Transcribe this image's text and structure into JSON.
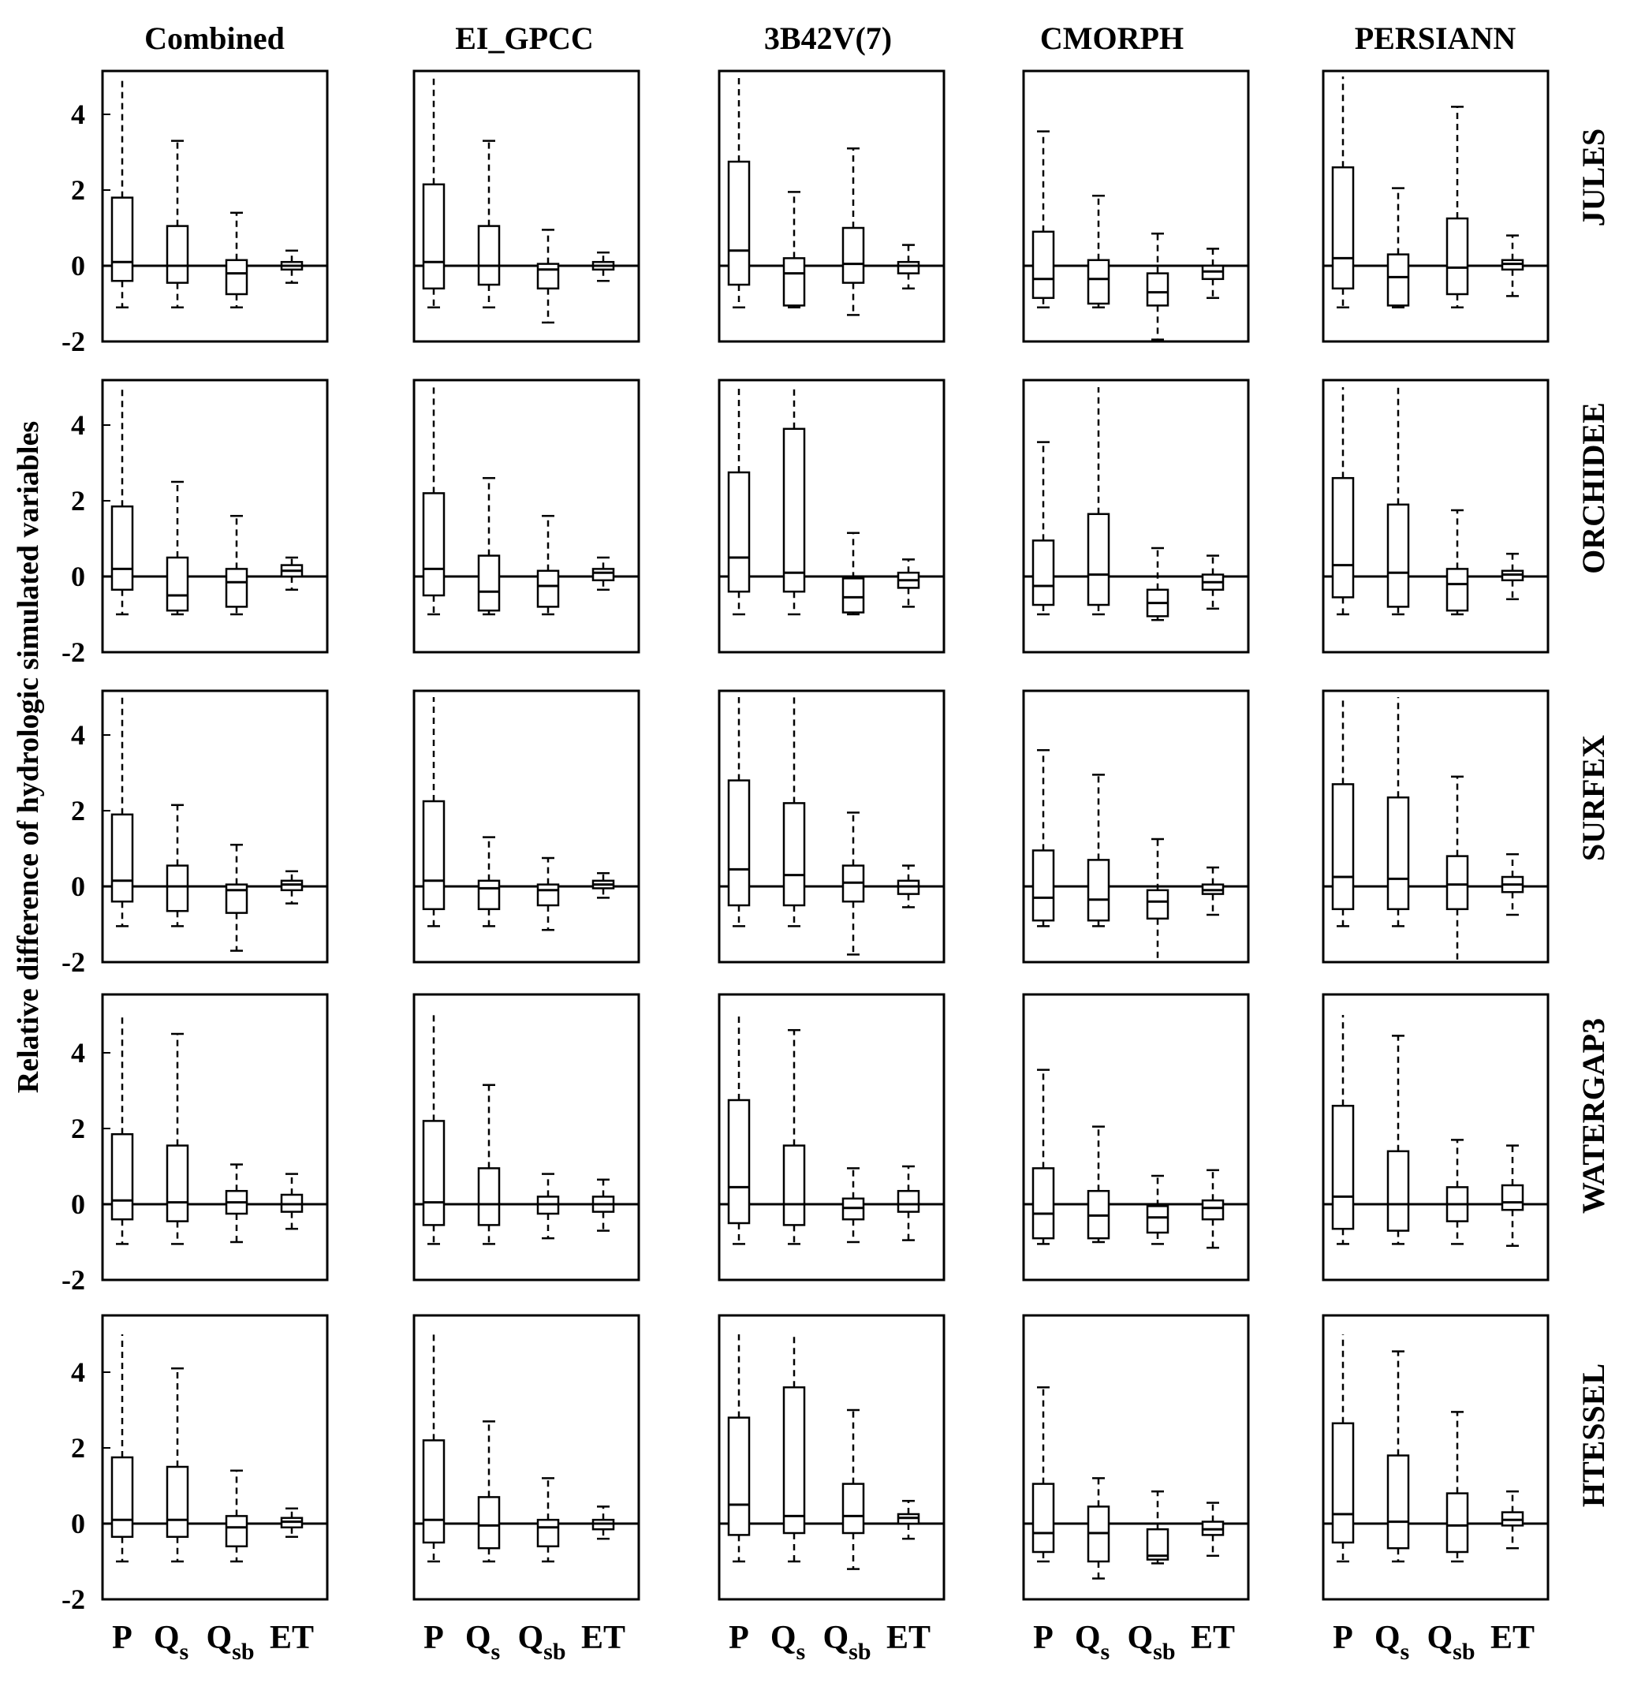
{
  "chart_data": {
    "type": "boxplot",
    "ylabel": "Relative difference of hydrologic simulated variables",
    "columns": [
      "Combined",
      "EI_GPCC",
      "3B42V(7)",
      "CMORPH",
      "PERSIANN"
    ],
    "rows": [
      "JULES",
      "ORCHIDEE",
      "SURFEX",
      "WATERGAP3",
      "HTESSEL"
    ],
    "variables": [
      {
        "main": "P",
        "sub": ""
      },
      {
        "main": "Q",
        "sub": "s"
      },
      {
        "main": "Q",
        "sub": "sb"
      },
      {
        "main": "ET",
        "sub": ""
      }
    ],
    "yticks": [
      "4",
      "2",
      "0",
      "-2"
    ],
    "ylim": [
      -2,
      5
    ],
    "zero_line": 0,
    "box_fields": [
      "whisker_low",
      "q1",
      "median",
      "q3",
      "whisker_high"
    ],
    "boxes": [
      [
        [
          [
            -1.1,
            -0.4,
            0.1,
            1.8,
            5
          ],
          [
            -1.1,
            -0.45,
            0,
            1.05,
            3.3
          ],
          [
            -1.1,
            -0.75,
            -0.2,
            0.15,
            1.4
          ],
          [
            -0.45,
            -0.1,
            0,
            0.1,
            0.4
          ]
        ],
        [
          [
            -1.1,
            -0.6,
            0.1,
            2.15,
            5
          ],
          [
            -1.1,
            -0.5,
            0,
            1.05,
            3.3
          ],
          [
            -1.5,
            -0.6,
            -0.1,
            0.05,
            0.95
          ],
          [
            -0.4,
            -0.1,
            0,
            0.1,
            0.35
          ]
        ],
        [
          [
            -1.1,
            -0.5,
            0.4,
            2.75,
            5
          ],
          [
            -1.1,
            -1.05,
            -0.2,
            0.2,
            1.95
          ],
          [
            -1.3,
            -0.45,
            0.05,
            1.0,
            3.1
          ],
          [
            -0.6,
            -0.2,
            0,
            0.1,
            0.55
          ]
        ],
        [
          [
            -1.1,
            -0.85,
            -0.35,
            0.9,
            3.55
          ],
          [
            -1.1,
            -1.0,
            -0.35,
            0.15,
            1.85
          ],
          [
            -1.95,
            -1.05,
            -0.7,
            -0.2,
            0.85
          ],
          [
            -0.85,
            -0.35,
            -0.15,
            0,
            0.45
          ]
        ],
        [
          [
            -1.1,
            -0.6,
            0.2,
            2.6,
            5
          ],
          [
            -1.1,
            -1.05,
            -0.3,
            0.3,
            2.05
          ],
          [
            -1.1,
            -0.75,
            -0.05,
            1.25,
            4.2
          ],
          [
            -0.8,
            -0.1,
            0.05,
            0.15,
            0.8
          ]
        ]
      ],
      [
        [
          [
            -1.0,
            -0.35,
            0.2,
            1.85,
            5
          ],
          [
            -1.0,
            -0.9,
            -0.5,
            0.5,
            2.5
          ],
          [
            -1.0,
            -0.8,
            -0.15,
            0.2,
            1.6
          ],
          [
            -0.35,
            0,
            0.15,
            0.3,
            0.5
          ]
        ],
        [
          [
            -1.0,
            -0.5,
            0.2,
            2.2,
            5
          ],
          [
            -1.0,
            -0.9,
            -0.4,
            0.55,
            2.6
          ],
          [
            -1.0,
            -0.8,
            -0.25,
            0.15,
            1.6
          ],
          [
            -0.35,
            -0.1,
            0.1,
            0.2,
            0.5
          ]
        ],
        [
          [
            -1.0,
            -0.4,
            0.5,
            2.75,
            5
          ],
          [
            -1.0,
            -0.4,
            0.1,
            3.9,
            5
          ],
          [
            -1.0,
            -0.95,
            -0.55,
            -0.05,
            1.15
          ],
          [
            -0.8,
            -0.3,
            -0.1,
            0.1,
            0.45
          ]
        ],
        [
          [
            -1.0,
            -0.75,
            -0.25,
            0.95,
            3.55
          ],
          [
            -1.0,
            -0.75,
            0.05,
            1.65,
            5
          ],
          [
            -1.15,
            -1.05,
            -0.7,
            -0.35,
            0.75
          ],
          [
            -0.85,
            -0.35,
            -0.15,
            0.05,
            0.55
          ]
        ],
        [
          [
            -1.0,
            -0.55,
            0.3,
            2.6,
            5
          ],
          [
            -1.0,
            -0.8,
            0.1,
            1.9,
            5
          ],
          [
            -1.0,
            -0.9,
            -0.2,
            0.2,
            1.75
          ],
          [
            -0.6,
            -0.1,
            0.05,
            0.15,
            0.6
          ]
        ]
      ],
      [
        [
          [
            -1.05,
            -0.4,
            0.15,
            1.9,
            5
          ],
          [
            -1.05,
            -0.65,
            0,
            0.55,
            2.15
          ],
          [
            -1.7,
            -0.7,
            -0.1,
            0.05,
            1.1
          ],
          [
            -0.45,
            -0.1,
            0.05,
            0.15,
            0.4
          ]
        ],
        [
          [
            -1.05,
            -0.6,
            0.15,
            2.25,
            5
          ],
          [
            -1.05,
            -0.6,
            -0.05,
            0.15,
            1.3
          ],
          [
            -1.15,
            -0.5,
            -0.1,
            0.05,
            0.75
          ],
          [
            -0.3,
            -0.05,
            0.05,
            0.15,
            0.35
          ]
        ],
        [
          [
            -1.05,
            -0.5,
            0.45,
            2.8,
            5
          ],
          [
            -1.05,
            -0.5,
            0.3,
            2.2,
            5
          ],
          [
            -1.8,
            -0.4,
            0.1,
            0.55,
            1.95
          ],
          [
            -0.55,
            -0.2,
            0,
            0.15,
            0.55
          ]
        ],
        [
          [
            -1.05,
            -0.9,
            -0.3,
            0.95,
            3.6
          ],
          [
            -1.05,
            -0.9,
            -0.35,
            0.7,
            2.95
          ],
          [
            -2.1,
            -0.85,
            -0.4,
            -0.1,
            1.25
          ],
          [
            -0.75,
            -0.2,
            -0.1,
            0.05,
            0.5
          ]
        ],
        [
          [
            -1.05,
            -0.6,
            0.25,
            2.7,
            5
          ],
          [
            -1.05,
            -0.6,
            0.2,
            2.35,
            5
          ],
          [
            -2.1,
            -0.6,
            0.05,
            0.8,
            2.9
          ],
          [
            -0.75,
            -0.15,
            0.05,
            0.25,
            0.85
          ]
        ]
      ],
      [
        [
          [
            -1.05,
            -0.4,
            0.1,
            1.85,
            5
          ],
          [
            -1.05,
            -0.45,
            0.05,
            1.55,
            4.5
          ],
          [
            -1.0,
            -0.25,
            0.05,
            0.35,
            1.05
          ],
          [
            -0.65,
            -0.2,
            0,
            0.25,
            0.8
          ]
        ],
        [
          [
            -1.05,
            -0.55,
            0.05,
            2.2,
            5
          ],
          [
            -1.05,
            -0.55,
            0,
            0.95,
            3.15
          ],
          [
            -0.9,
            -0.25,
            0,
            0.2,
            0.8
          ],
          [
            -0.7,
            -0.2,
            0,
            0.2,
            0.65
          ]
        ],
        [
          [
            -1.05,
            -0.5,
            0.45,
            2.75,
            5
          ],
          [
            -1.05,
            -0.55,
            0,
            1.55,
            4.6
          ],
          [
            -1.0,
            -0.4,
            -0.1,
            0.15,
            0.95
          ],
          [
            -0.95,
            -0.2,
            0,
            0.35,
            1.0
          ]
        ],
        [
          [
            -1.05,
            -0.9,
            -0.25,
            0.95,
            3.55
          ],
          [
            -1.0,
            -0.9,
            -0.3,
            0.35,
            2.05
          ],
          [
            -1.05,
            -0.75,
            -0.35,
            -0.05,
            0.75
          ],
          [
            -1.15,
            -0.4,
            -0.1,
            0.1,
            0.9
          ]
        ],
        [
          [
            -1.05,
            -0.65,
            0.2,
            2.6,
            5
          ],
          [
            -1.05,
            -0.7,
            0,
            1.4,
            4.45
          ],
          [
            -1.05,
            -0.45,
            0,
            0.45,
            1.7
          ],
          [
            -1.1,
            -0.15,
            0.05,
            0.5,
            1.55
          ]
        ]
      ],
      [
        [
          [
            -1.0,
            -0.35,
            0.1,
            1.75,
            5
          ],
          [
            -1.0,
            -0.35,
            0.1,
            1.5,
            4.1
          ],
          [
            -1.0,
            -0.6,
            -0.1,
            0.2,
            1.4
          ],
          [
            -0.35,
            -0.1,
            0.05,
            0.15,
            0.4
          ]
        ],
        [
          [
            -1.0,
            -0.5,
            0.1,
            2.2,
            5
          ],
          [
            -1.0,
            -0.65,
            -0.05,
            0.7,
            2.7
          ],
          [
            -1.0,
            -0.6,
            -0.1,
            0.1,
            1.2
          ],
          [
            -0.4,
            -0.15,
            0,
            0.1,
            0.45
          ]
        ],
        [
          [
            -1.0,
            -0.3,
            0.5,
            2.8,
            5
          ],
          [
            -1.0,
            -0.25,
            0.2,
            3.6,
            5
          ],
          [
            -1.2,
            -0.25,
            0.2,
            1.05,
            3.0
          ],
          [
            -0.4,
            0,
            0.15,
            0.25,
            0.6
          ]
        ],
        [
          [
            -1.0,
            -0.75,
            -0.25,
            1.05,
            3.6
          ],
          [
            -1.45,
            -1.0,
            -0.25,
            0.45,
            1.2
          ],
          [
            -1.05,
            -0.95,
            -0.85,
            -0.15,
            0.85
          ],
          [
            -0.85,
            -0.3,
            -0.15,
            0.05,
            0.55
          ]
        ],
        [
          [
            -1.0,
            -0.5,
            0.25,
            2.65,
            5
          ],
          [
            -1.0,
            -0.65,
            0.05,
            1.8,
            4.55
          ],
          [
            -1.0,
            -0.75,
            -0.05,
            0.8,
            2.95
          ],
          [
            -0.65,
            -0.05,
            0.1,
            0.3,
            0.85
          ]
        ]
      ]
    ]
  }
}
